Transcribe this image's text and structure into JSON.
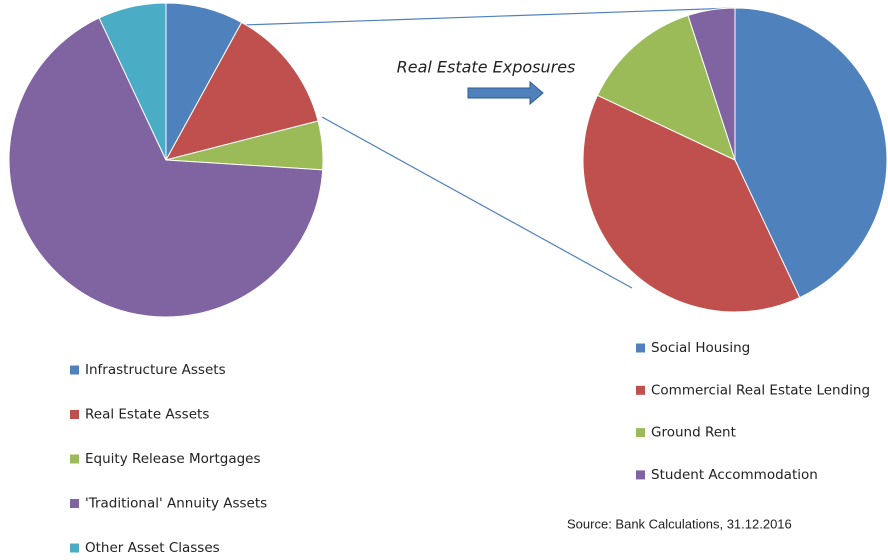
{
  "chart_data": [
    {
      "type": "pie",
      "categories": [
        "Infrastructure Assets",
        "Real Estate Assets",
        "Equity Release Mortgages",
        "'Traditional' Annuity Assets",
        "Other Asset Classes"
      ],
      "values": [
        8,
        13,
        5,
        67,
        7
      ],
      "colors": [
        "#4f81bd",
        "#c0504d",
        "#9bbb59",
        "#8064a2",
        "#4bacc6"
      ]
    },
    {
      "type": "pie",
      "title": "Real Estate Exposures",
      "categories": [
        "Social Housing",
        "Commercial Real Estate Lending",
        "Ground Rent",
        "Student Accommodation"
      ],
      "values": [
        43,
        39,
        13,
        5
      ],
      "colors": [
        "#4f81bd",
        "#c0504d",
        "#9bbb59",
        "#8064a2"
      ],
      "annotation": "Source: Bank Calculations,  31.12.2016"
    }
  ]
}
